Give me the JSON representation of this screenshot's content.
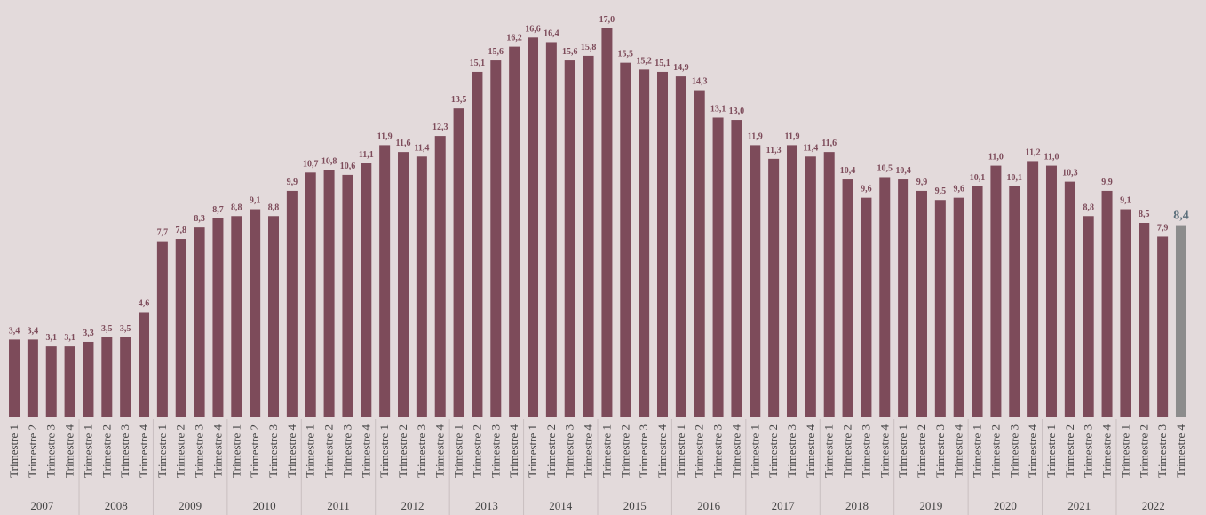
{
  "chart_data": {
    "type": "bar",
    "categories": [
      "Trimestre 1",
      "Trimestre 2",
      "Trimestre 3",
      "Trimestre 4",
      "Trimestre 1",
      "Trimestre 2",
      "Trimestre 3",
      "Trimestre 4",
      "Trimestre 1",
      "Trimestre 2",
      "Trimestre 3",
      "Trimestre 4",
      "Trimestre 1",
      "Trimestre 2",
      "Trimestre 3",
      "Trimestre 4",
      "Trimestre 1",
      "Trimestre 2",
      "Trimestre 3",
      "Trimestre 4",
      "Trimestre 1",
      "Trimestre 2",
      "Trimestre 3",
      "Trimestre 4",
      "Trimestre 1",
      "Trimestre 2",
      "Trimestre 3",
      "Trimestre 4",
      "Trimestre 1",
      "Trimestre 2",
      "Trimestre 3",
      "Trimestre 4",
      "Trimestre 1",
      "Trimestre 2",
      "Trimestre 3",
      "Trimestre 4",
      "Trimestre 1",
      "Trimestre 2",
      "Trimestre 3",
      "Trimestre 4",
      "Trimestre 1",
      "Trimestre 2",
      "Trimestre 3",
      "Trimestre 4",
      "Trimestre 1",
      "Trimestre 2",
      "Trimestre 3",
      "Trimestre 4",
      "Trimestre 1",
      "Trimestre 2",
      "Trimestre 3",
      "Trimestre 4",
      "Trimestre 1",
      "Trimestre 2",
      "Trimestre 3",
      "Trimestre 4",
      "Trimestre 1",
      "Trimestre 2",
      "Trimestre 3",
      "Trimestre 4",
      "Trimestre 1",
      "Trimestre 2",
      "Trimestre 3",
      "Trimestre 4"
    ],
    "groups": [
      "2007",
      "2008",
      "2009",
      "2010",
      "2011",
      "2012",
      "2013",
      "2014",
      "2015",
      "2016",
      "2017",
      "2018",
      "2019",
      "2020",
      "2021",
      "2022"
    ],
    "values": [
      3.4,
      3.4,
      3.1,
      3.1,
      3.3,
      3.5,
      3.5,
      4.6,
      7.7,
      7.8,
      8.3,
      8.7,
      8.8,
      9.1,
      8.8,
      9.9,
      10.7,
      10.8,
      10.6,
      11.1,
      11.9,
      11.6,
      11.4,
      12.3,
      13.5,
      15.1,
      15.6,
      16.2,
      16.6,
      16.4,
      15.6,
      15.8,
      17.0,
      15.5,
      15.2,
      15.1,
      14.9,
      14.3,
      13.1,
      13.0,
      11.9,
      11.3,
      11.9,
      11.4,
      11.6,
      10.4,
      9.6,
      10.5,
      10.4,
      9.9,
      9.5,
      9.6,
      10.1,
      11.0,
      10.1,
      11.2,
      11.0,
      10.3,
      8.8,
      9.9,
      9.1,
      8.5,
      7.9,
      8.4
    ],
    "value_labels": [
      "3,4",
      "3,4",
      "3,1",
      "3,1",
      "3,3",
      "3,5",
      "3,5",
      "4,6",
      "7,7",
      "7,8",
      "8,3",
      "8,7",
      "8,8",
      "9,1",
      "8,8",
      "9,9",
      "10,7",
      "10,8",
      "10,6",
      "11,1",
      "11,9",
      "11,6",
      "11,4",
      "12,3",
      "13,5",
      "15,1",
      "15,6",
      "16,2",
      "16,6",
      "16,4",
      "15,6",
      "15,8",
      "17,0",
      "15,5",
      "15,2",
      "15,1",
      "14,9",
      "14,3",
      "13,1",
      "13,0",
      "11,9",
      "11,3",
      "11,9",
      "11,4",
      "11,6",
      "10,4",
      "9,6",
      "10,5",
      "10,4",
      "9,9",
      "9,5",
      "9,6",
      "10,1",
      "11,0",
      "10,1",
      "11,2",
      "11,0",
      "10,3",
      "8,8",
      "9,9",
      "9,1",
      "8,5",
      "7,9",
      "8,4"
    ],
    "colors": [
      "#7d4b5a",
      "#7d4b5a",
      "#7d4b5a",
      "#7d4b5a",
      "#7d4b5a",
      "#7d4b5a",
      "#7d4b5a",
      "#7d4b5a",
      "#7d4b5a",
      "#7d4b5a",
      "#7d4b5a",
      "#7d4b5a",
      "#7d4b5a",
      "#7d4b5a",
      "#7d4b5a",
      "#7d4b5a",
      "#7d4b5a",
      "#7d4b5a",
      "#7d4b5a",
      "#7d4b5a",
      "#7d4b5a",
      "#7d4b5a",
      "#7d4b5a",
      "#7d4b5a",
      "#7d4b5a",
      "#7d4b5a",
      "#7d4b5a",
      "#7d4b5a",
      "#7d4b5a",
      "#7d4b5a",
      "#7d4b5a",
      "#7d4b5a",
      "#7d4b5a",
      "#7d4b5a",
      "#7d4b5a",
      "#7d4b5a",
      "#7d4b5a",
      "#7d4b5a",
      "#7d4b5a",
      "#7d4b5a",
      "#7d4b5a",
      "#7d4b5a",
      "#7d4b5a",
      "#7d4b5a",
      "#7d4b5a",
      "#7d4b5a",
      "#7d4b5a",
      "#7d4b5a",
      "#7d4b5a",
      "#7d4b5a",
      "#7d4b5a",
      "#7d4b5a",
      "#7d4b5a",
      "#7d4b5a",
      "#7d4b5a",
      "#7d4b5a",
      "#7d4b5a",
      "#7d4b5a",
      "#7d4b5a",
      "#7d4b5a",
      "#7d4b5a",
      "#7d4b5a",
      "#7d4b5a",
      "#8c8c8c"
    ]
  }
}
